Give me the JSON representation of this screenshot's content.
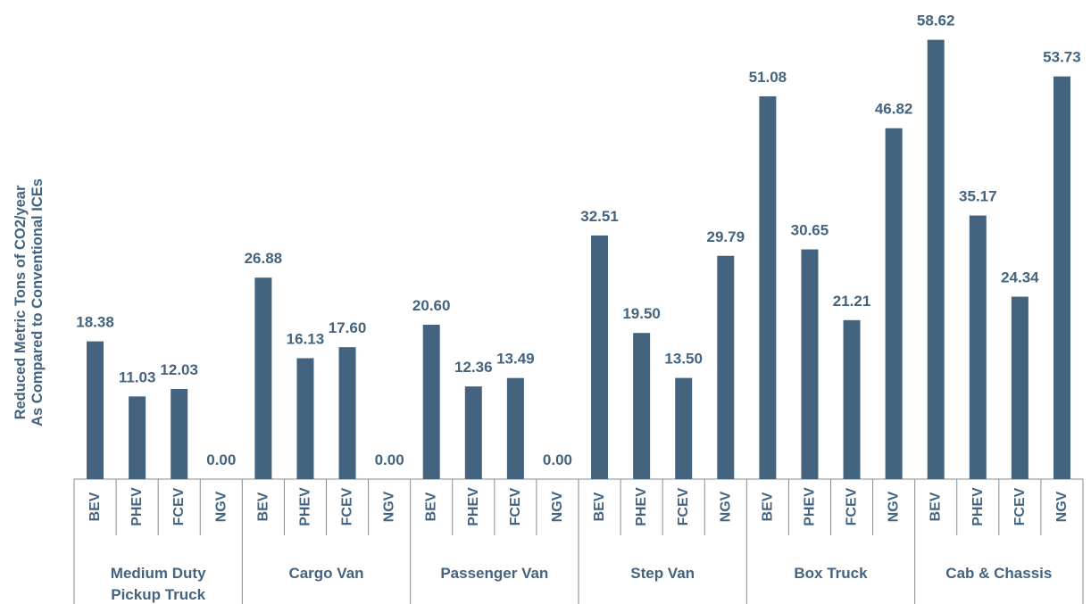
{
  "chart_data": {
    "type": "bar",
    "ylabel": [
      "Reduced Metric Tons of CO2/year",
      "As Compared to Conventional ICEs"
    ],
    "xlabel": "",
    "ylim": [
      0,
      60
    ],
    "grid": false,
    "legend": "none",
    "bar_color": "#44637f",
    "text_color": "#44637f",
    "axis_color": "#8a8a8a",
    "groups": [
      {
        "name": "Medium Duty Pickup Truck",
        "name_lines": [
          "Medium Duty",
          "Pickup Truck"
        ],
        "categories": [
          "BEV",
          "PHEV",
          "FCEV",
          "NGV"
        ],
        "values": [
          18.38,
          11.03,
          12.03,
          0.0
        ],
        "labels": [
          "18.38",
          "11.03",
          "12.03",
          "0.00"
        ]
      },
      {
        "name": "Cargo Van",
        "name_lines": [
          "Cargo Van"
        ],
        "categories": [
          "BEV",
          "PHEV",
          "FCEV",
          "NGV"
        ],
        "values": [
          26.88,
          16.13,
          17.6,
          0.0
        ],
        "labels": [
          "26.88",
          "16.13",
          "17.60",
          "0.00"
        ]
      },
      {
        "name": "Passenger Van",
        "name_lines": [
          "Passenger Van"
        ],
        "categories": [
          "BEV",
          "PHEV",
          "FCEV",
          "NGV"
        ],
        "values": [
          20.6,
          12.36,
          13.49,
          0.0
        ],
        "labels": [
          "20.60",
          "12.36",
          "13.49",
          "0.00"
        ]
      },
      {
        "name": "Step Van",
        "name_lines": [
          "Step Van"
        ],
        "categories": [
          "BEV",
          "PHEV",
          "FCEV",
          "NGV"
        ],
        "values": [
          32.51,
          19.5,
          13.5,
          29.79
        ],
        "labels": [
          "32.51",
          "19.50",
          "13.50",
          "29.79"
        ]
      },
      {
        "name": "Box Truck",
        "name_lines": [
          "Box Truck"
        ],
        "categories": [
          "BEV",
          "PHEV",
          "FCEV",
          "NGV"
        ],
        "values": [
          51.08,
          30.65,
          21.21,
          46.82
        ],
        "labels": [
          "51.08",
          "30.65",
          "21.21",
          "46.82"
        ]
      },
      {
        "name": "Cab & Chassis",
        "name_lines": [
          "Cab & Chassis"
        ],
        "categories": [
          "BEV",
          "PHEV",
          "FCEV",
          "NGV"
        ],
        "values": [
          58.62,
          35.17,
          24.34,
          53.73
        ],
        "labels": [
          "58.62",
          "35.17",
          "24.34",
          "53.73"
        ]
      }
    ]
  }
}
